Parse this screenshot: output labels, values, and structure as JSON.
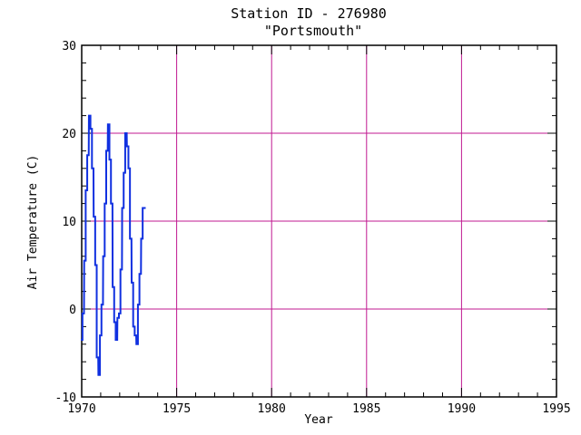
{
  "chart_data": {
    "type": "line",
    "title": "Station ID - 276980",
    "subtitle": "\"Portsmouth\"",
    "xlabel": "Year",
    "ylabel": "Air Temperature (C)",
    "xlim": [
      1970,
      1995
    ],
    "ylim": [
      -10,
      30
    ],
    "x_ticks": [
      1970,
      1975,
      1980,
      1985,
      1990,
      1995
    ],
    "y_ticks": [
      -10,
      0,
      10,
      20,
      30
    ],
    "grid": true,
    "colors": {
      "line": "#1030e0",
      "grid": "#c01890",
      "frame": "#000000"
    },
    "series": [
      {
        "x": [
          1970.0,
          1970.08,
          1970.17,
          1970.25,
          1970.33,
          1970.42,
          1970.5,
          1970.58,
          1970.67,
          1970.75,
          1970.83,
          1970.92,
          1971.0,
          1971.08,
          1971.17,
          1971.25,
          1971.33,
          1971.42,
          1971.5,
          1971.58,
          1971.67,
          1971.75,
          1971.83,
          1971.92,
          1972.0,
          1972.08,
          1972.17,
          1972.25,
          1972.33,
          1972.42,
          1972.5,
          1972.58,
          1972.67,
          1972.75,
          1972.83,
          1972.92,
          1973.0,
          1973.08,
          1973.17,
          1973.25,
          1973.33
        ],
        "y": [
          -3.5,
          -0.5,
          5.5,
          13.5,
          17.5,
          22.0,
          20.5,
          16.0,
          10.5,
          5.0,
          -5.5,
          -7.5,
          -3.0,
          0.5,
          6.0,
          12.0,
          18.0,
          21.0,
          17.0,
          12.0,
          2.5,
          -1.5,
          -3.5,
          -1.0,
          -0.5,
          4.5,
          11.5,
          15.5,
          20.0,
          18.5,
          16.0,
          8.0,
          3.0,
          -2.0,
          -3.0,
          -4.0,
          0.5,
          4.0,
          8.0,
          11.5,
          11.5
        ]
      }
    ]
  }
}
